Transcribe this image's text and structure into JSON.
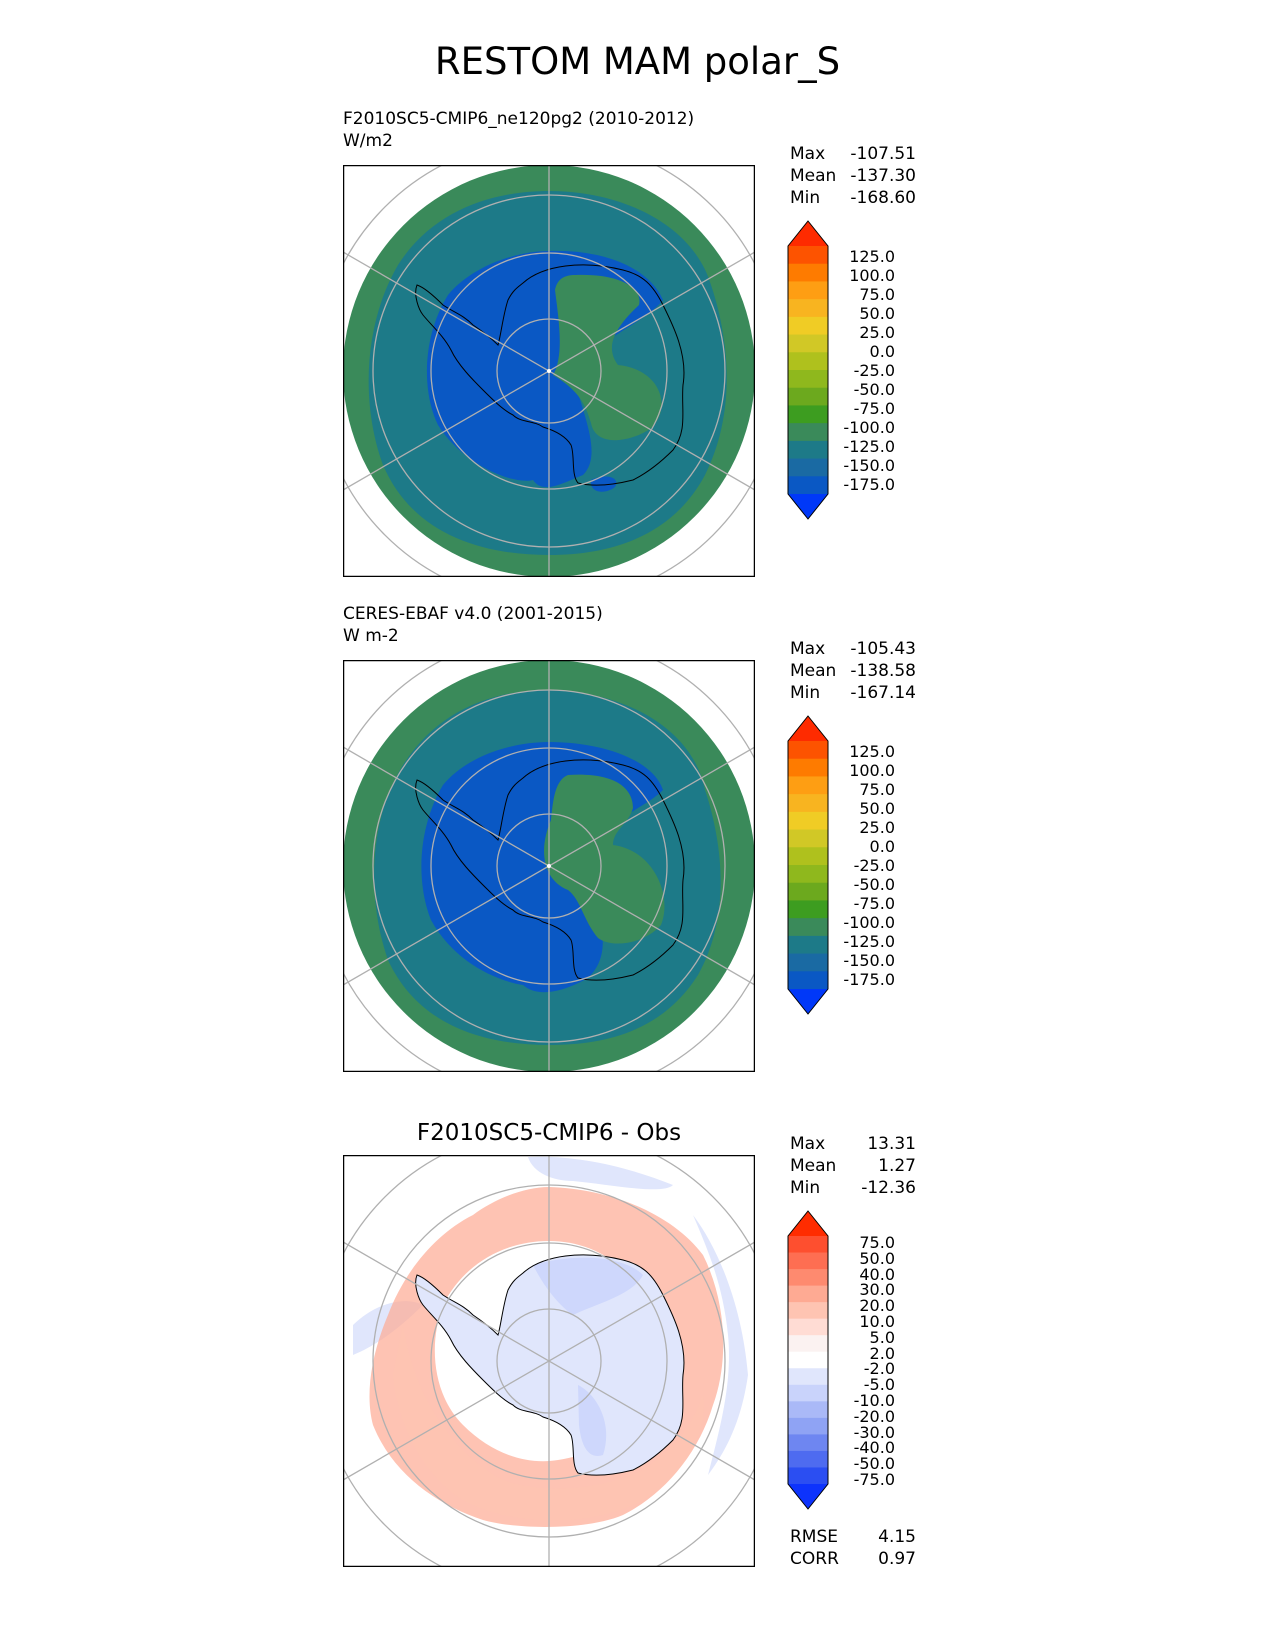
{
  "figure": {
    "title": "RESTOM MAM polar_S"
  },
  "panels": [
    {
      "title_line1": "F2010SC5-CMIP6_ne120pg2 (2010-2012)",
      "title_line2": "W/m2",
      "stats": {
        "max_label": "Max",
        "max": "-107.51",
        "mean_label": "Mean",
        "mean": "-137.30",
        "min_label": "Min",
        "min": "-168.60"
      },
      "colorbar_ticks": [
        "125.0",
        "100.0",
        "75.0",
        "50.0",
        "25.0",
        "0.0",
        "-25.0",
        "-50.0",
        "-75.0",
        "-100.0",
        "-125.0",
        "-150.0",
        "-175.0"
      ]
    },
    {
      "title_line1": "CERES-EBAF v4.0 (2001-2015)",
      "title_line2": "W m-2",
      "stats": {
        "max_label": "Max",
        "max": "-105.43",
        "mean_label": "Mean",
        "mean": "-138.58",
        "min_label": "Min",
        "min": "-167.14"
      },
      "colorbar_ticks": [
        "125.0",
        "100.0",
        "75.0",
        "50.0",
        "25.0",
        "0.0",
        "-25.0",
        "-50.0",
        "-75.0",
        "-100.0",
        "-125.0",
        "-150.0",
        "-175.0"
      ]
    },
    {
      "title": "F2010SC5-CMIP6 - Obs",
      "stats": {
        "max_label": "Max",
        "max": "13.31",
        "mean_label": "Mean",
        "mean": "1.27",
        "min_label": "Min",
        "min": "-12.36"
      },
      "colorbar_ticks": [
        "75.0",
        "50.0",
        "40.0",
        "30.0",
        "20.0",
        "10.0",
        "5.0",
        "2.0",
        "-2.0",
        "-5.0",
        "-10.0",
        "-20.0",
        "-30.0",
        "-40.0",
        "-50.0",
        "-75.0"
      ],
      "rmse_label": "RMSE",
      "rmse": "4.15",
      "corr_label": "CORR",
      "corr": "0.97"
    }
  ],
  "colors": {
    "abs_scale": [
      "#fe2b00",
      "#fd5300",
      "#fe7b00",
      "#fe9e13",
      "#f8b420",
      "#f0cc25",
      "#d1c826",
      "#afc11d",
      "#8fb81d",
      "#6ca91e",
      "#3d9d20",
      "#3a8a5a",
      "#1d7a88",
      "#1a6aa3",
      "#0a58c4",
      "#0038f8"
    ],
    "diff_scale": [
      "#ff2c00",
      "#fe4f2f",
      "#fe6e52",
      "#fe8a6f",
      "#feaa93",
      "#fec4b2",
      "#ffdcd4",
      "#fbf2f1",
      "#ffffff",
      "#e0e6fc",
      "#c9d3fb",
      "#aab9f7",
      "#8fa3f4",
      "#6e86f1",
      "#4e6bf0",
      "#2b4ef2",
      "#0d33fc"
    ],
    "land_outline": "#000000",
    "grid": "#b0b0b0"
  }
}
